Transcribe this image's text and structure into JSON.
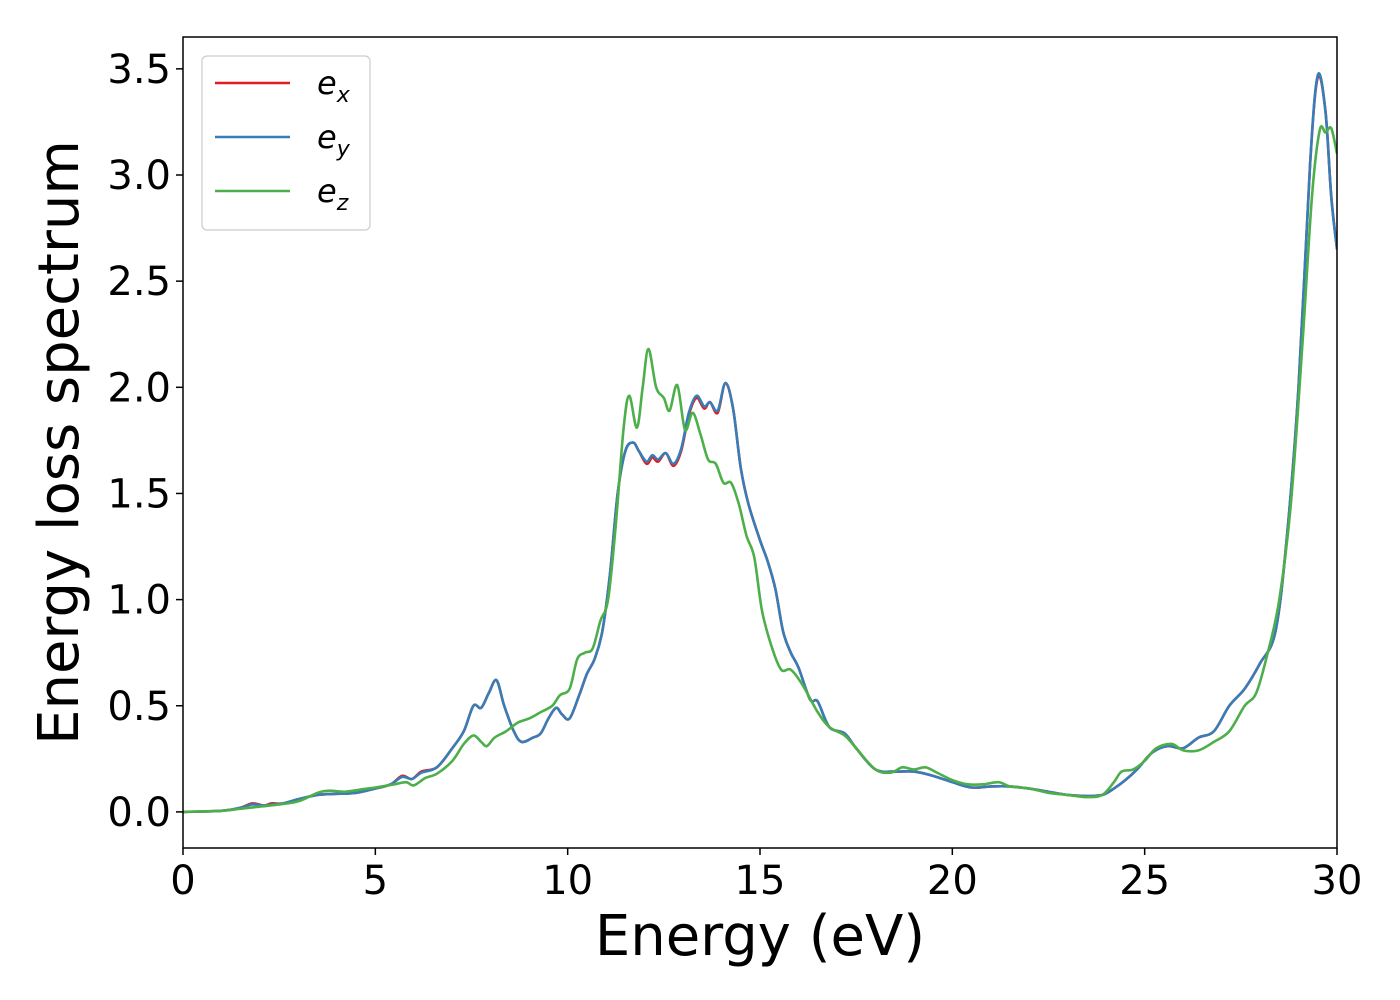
{
  "chart_data": {
    "type": "line",
    "xlabel": "Energy (eV)",
    "ylabel": "Energy loss spectrum",
    "xlim": [
      0,
      30
    ],
    "ylim": [
      -0.17,
      3.65
    ],
    "xticks": [
      0,
      5,
      10,
      15,
      20,
      25,
      30
    ],
    "yticks": [
      0.0,
      0.5,
      1.0,
      1.5,
      2.0,
      2.5,
      3.0,
      3.5
    ],
    "xtick_labels": [
      "0",
      "5",
      "10",
      "15",
      "20",
      "25",
      "30"
    ],
    "ytick_labels": [
      "0.0",
      "0.5",
      "1.0",
      "1.5",
      "2.0",
      "2.5",
      "3.0",
      "3.5"
    ],
    "grid": false,
    "legend_position": "top-left",
    "series": [
      {
        "name": "e_x",
        "legend_base": "e",
        "legend_sub": "x",
        "color": "#e41a1c",
        "points": [
          [
            0,
            0
          ],
          [
            1,
            0.005
          ],
          [
            1.5,
            0.02
          ],
          [
            1.8,
            0.04
          ],
          [
            2.1,
            0.03
          ],
          [
            2.3,
            0.04
          ],
          [
            2.6,
            0.04
          ],
          [
            3,
            0.06
          ],
          [
            3.5,
            0.08
          ],
          [
            4,
            0.085
          ],
          [
            4.5,
            0.09
          ],
          [
            5,
            0.11
          ],
          [
            5.4,
            0.13
          ],
          [
            5.7,
            0.17
          ],
          [
            5.95,
            0.155
          ],
          [
            6.2,
            0.19
          ],
          [
            6.6,
            0.21
          ],
          [
            7,
            0.3
          ],
          [
            7.3,
            0.38
          ],
          [
            7.55,
            0.5
          ],
          [
            7.75,
            0.49
          ],
          [
            7.95,
            0.56
          ],
          [
            8.15,
            0.62
          ],
          [
            8.35,
            0.5
          ],
          [
            8.6,
            0.38
          ],
          [
            8.8,
            0.33
          ],
          [
            9.1,
            0.35
          ],
          [
            9.3,
            0.37
          ],
          [
            9.5,
            0.44
          ],
          [
            9.7,
            0.49
          ],
          [
            9.85,
            0.46
          ],
          [
            10.05,
            0.44
          ],
          [
            10.3,
            0.55
          ],
          [
            10.5,
            0.65
          ],
          [
            10.7,
            0.72
          ],
          [
            10.9,
            0.85
          ],
          [
            11.1,
            1.12
          ],
          [
            11.3,
            1.5
          ],
          [
            11.5,
            1.7
          ],
          [
            11.7,
            1.74
          ],
          [
            11.85,
            1.7
          ],
          [
            12.05,
            1.64
          ],
          [
            12.2,
            1.67
          ],
          [
            12.35,
            1.65
          ],
          [
            12.55,
            1.69
          ],
          [
            12.75,
            1.63
          ],
          [
            12.95,
            1.7
          ],
          [
            13.15,
            1.87
          ],
          [
            13.35,
            1.95
          ],
          [
            13.55,
            1.9
          ],
          [
            13.7,
            1.93
          ],
          [
            13.9,
            1.88
          ],
          [
            14.1,
            2.02
          ],
          [
            14.3,
            1.9
          ],
          [
            14.5,
            1.62
          ],
          [
            14.7,
            1.45
          ],
          [
            15,
            1.28
          ],
          [
            15.2,
            1.18
          ],
          [
            15.4,
            1.05
          ],
          [
            15.6,
            0.85
          ],
          [
            15.8,
            0.75
          ],
          [
            16,
            0.68
          ],
          [
            16.3,
            0.53
          ],
          [
            16.5,
            0.52
          ],
          [
            16.8,
            0.4
          ],
          [
            17.2,
            0.37
          ],
          [
            17.5,
            0.3
          ],
          [
            18,
            0.2
          ],
          [
            18.5,
            0.19
          ],
          [
            19,
            0.19
          ],
          [
            19.5,
            0.17
          ],
          [
            20,
            0.14
          ],
          [
            20.5,
            0.115
          ],
          [
            21,
            0.12
          ],
          [
            21.5,
            0.12
          ],
          [
            22,
            0.11
          ],
          [
            22.5,
            0.095
          ],
          [
            23,
            0.08
          ],
          [
            23.5,
            0.075
          ],
          [
            23.9,
            0.08
          ],
          [
            24.2,
            0.11
          ],
          [
            24.5,
            0.15
          ],
          [
            24.8,
            0.2
          ],
          [
            25.2,
            0.28
          ],
          [
            25.6,
            0.31
          ],
          [
            26,
            0.3
          ],
          [
            26.4,
            0.35
          ],
          [
            26.8,
            0.38
          ],
          [
            27.2,
            0.5
          ],
          [
            27.6,
            0.58
          ],
          [
            28,
            0.7
          ],
          [
            28.4,
            0.85
          ],
          [
            28.7,
            1.3
          ],
          [
            29,
            2.0
          ],
          [
            29.3,
            3.05
          ],
          [
            29.5,
            3.46
          ],
          [
            29.7,
            3.3
          ],
          [
            29.85,
            2.9
          ],
          [
            30,
            2.65
          ]
        ]
      },
      {
        "name": "e_y",
        "legend_base": "e",
        "legend_sub": "y",
        "color": "#377eb8",
        "points": [
          [
            0,
            0
          ],
          [
            1,
            0.005
          ],
          [
            1.5,
            0.02
          ],
          [
            1.8,
            0.035
          ],
          [
            2.1,
            0.03
          ],
          [
            2.3,
            0.035
          ],
          [
            2.6,
            0.04
          ],
          [
            3,
            0.06
          ],
          [
            3.5,
            0.08
          ],
          [
            4,
            0.085
          ],
          [
            4.5,
            0.09
          ],
          [
            5,
            0.11
          ],
          [
            5.4,
            0.13
          ],
          [
            5.7,
            0.165
          ],
          [
            5.95,
            0.155
          ],
          [
            6.2,
            0.185
          ],
          [
            6.6,
            0.21
          ],
          [
            7,
            0.3
          ],
          [
            7.3,
            0.38
          ],
          [
            7.55,
            0.5
          ],
          [
            7.75,
            0.49
          ],
          [
            7.95,
            0.56
          ],
          [
            8.15,
            0.62
          ],
          [
            8.35,
            0.5
          ],
          [
            8.6,
            0.38
          ],
          [
            8.8,
            0.33
          ],
          [
            9.1,
            0.35
          ],
          [
            9.3,
            0.37
          ],
          [
            9.5,
            0.44
          ],
          [
            9.7,
            0.49
          ],
          [
            9.85,
            0.46
          ],
          [
            10.05,
            0.44
          ],
          [
            10.3,
            0.55
          ],
          [
            10.5,
            0.65
          ],
          [
            10.7,
            0.72
          ],
          [
            10.9,
            0.85
          ],
          [
            11.1,
            1.12
          ],
          [
            11.3,
            1.5
          ],
          [
            11.5,
            1.7
          ],
          [
            11.7,
            1.74
          ],
          [
            11.85,
            1.7
          ],
          [
            12.05,
            1.65
          ],
          [
            12.2,
            1.68
          ],
          [
            12.35,
            1.66
          ],
          [
            12.55,
            1.69
          ],
          [
            12.75,
            1.64
          ],
          [
            12.95,
            1.71
          ],
          [
            13.15,
            1.88
          ],
          [
            13.35,
            1.96
          ],
          [
            13.55,
            1.91
          ],
          [
            13.7,
            1.93
          ],
          [
            13.9,
            1.89
          ],
          [
            14.1,
            2.02
          ],
          [
            14.3,
            1.9
          ],
          [
            14.5,
            1.62
          ],
          [
            14.7,
            1.45
          ],
          [
            15,
            1.28
          ],
          [
            15.2,
            1.18
          ],
          [
            15.4,
            1.05
          ],
          [
            15.6,
            0.85
          ],
          [
            15.8,
            0.75
          ],
          [
            16,
            0.68
          ],
          [
            16.3,
            0.53
          ],
          [
            16.5,
            0.52
          ],
          [
            16.8,
            0.4
          ],
          [
            17.2,
            0.37
          ],
          [
            17.5,
            0.3
          ],
          [
            18,
            0.2
          ],
          [
            18.5,
            0.19
          ],
          [
            19,
            0.19
          ],
          [
            19.5,
            0.17
          ],
          [
            20,
            0.14
          ],
          [
            20.5,
            0.115
          ],
          [
            21,
            0.12
          ],
          [
            21.5,
            0.12
          ],
          [
            22,
            0.11
          ],
          [
            22.5,
            0.095
          ],
          [
            23,
            0.08
          ],
          [
            23.5,
            0.075
          ],
          [
            23.9,
            0.08
          ],
          [
            24.2,
            0.11
          ],
          [
            24.5,
            0.15
          ],
          [
            24.8,
            0.2
          ],
          [
            25.2,
            0.28
          ],
          [
            25.6,
            0.31
          ],
          [
            26,
            0.3
          ],
          [
            26.4,
            0.35
          ],
          [
            26.8,
            0.38
          ],
          [
            27.2,
            0.5
          ],
          [
            27.6,
            0.58
          ],
          [
            28,
            0.7
          ],
          [
            28.4,
            0.85
          ],
          [
            28.7,
            1.3
          ],
          [
            29,
            2.0
          ],
          [
            29.3,
            3.05
          ],
          [
            29.5,
            3.47
          ],
          [
            29.7,
            3.3
          ],
          [
            29.85,
            2.9
          ],
          [
            30,
            2.65
          ]
        ]
      },
      {
        "name": "e_z",
        "legend_base": "e",
        "legend_sub": "z",
        "color": "#4daf4a",
        "points": [
          [
            0,
            0
          ],
          [
            1,
            0.005
          ],
          [
            1.5,
            0.015
          ],
          [
            2,
            0.025
          ],
          [
            2.5,
            0.035
          ],
          [
            3,
            0.05
          ],
          [
            3.5,
            0.09
          ],
          [
            3.8,
            0.1
          ],
          [
            4.2,
            0.095
          ],
          [
            4.6,
            0.105
          ],
          [
            5,
            0.115
          ],
          [
            5.5,
            0.13
          ],
          [
            5.8,
            0.14
          ],
          [
            6,
            0.125
          ],
          [
            6.3,
            0.16
          ],
          [
            6.6,
            0.18
          ],
          [
            7,
            0.24
          ],
          [
            7.3,
            0.32
          ],
          [
            7.55,
            0.36
          ],
          [
            7.75,
            0.33
          ],
          [
            7.9,
            0.31
          ],
          [
            8.1,
            0.35
          ],
          [
            8.4,
            0.38
          ],
          [
            8.7,
            0.42
          ],
          [
            9,
            0.44
          ],
          [
            9.3,
            0.47
          ],
          [
            9.6,
            0.5
          ],
          [
            9.8,
            0.55
          ],
          [
            10.05,
            0.58
          ],
          [
            10.25,
            0.72
          ],
          [
            10.45,
            0.75
          ],
          [
            10.65,
            0.77
          ],
          [
            10.85,
            0.9
          ],
          [
            11.05,
            1.0
          ],
          [
            11.25,
            1.35
          ],
          [
            11.45,
            1.8
          ],
          [
            11.6,
            1.96
          ],
          [
            11.8,
            1.81
          ],
          [
            11.95,
            2.0
          ],
          [
            12.1,
            2.18
          ],
          [
            12.3,
            2.0
          ],
          [
            12.5,
            1.95
          ],
          [
            12.65,
            1.89
          ],
          [
            12.85,
            2.01
          ],
          [
            13.05,
            1.8
          ],
          [
            13.25,
            1.88
          ],
          [
            13.45,
            1.78
          ],
          [
            13.65,
            1.66
          ],
          [
            13.85,
            1.64
          ],
          [
            14.05,
            1.55
          ],
          [
            14.25,
            1.55
          ],
          [
            14.45,
            1.45
          ],
          [
            14.65,
            1.3
          ],
          [
            14.85,
            1.2
          ],
          [
            15.05,
            0.95
          ],
          [
            15.3,
            0.78
          ],
          [
            15.55,
            0.67
          ],
          [
            15.8,
            0.67
          ],
          [
            16.1,
            0.6
          ],
          [
            16.5,
            0.47
          ],
          [
            16.8,
            0.4
          ],
          [
            17.2,
            0.36
          ],
          [
            17.5,
            0.3
          ],
          [
            18,
            0.2
          ],
          [
            18.4,
            0.185
          ],
          [
            18.7,
            0.21
          ],
          [
            19,
            0.2
          ],
          [
            19.3,
            0.21
          ],
          [
            19.6,
            0.185
          ],
          [
            20,
            0.15
          ],
          [
            20.4,
            0.13
          ],
          [
            20.8,
            0.13
          ],
          [
            21.2,
            0.14
          ],
          [
            21.5,
            0.12
          ],
          [
            22,
            0.11
          ],
          [
            22.5,
            0.09
          ],
          [
            23,
            0.08
          ],
          [
            23.5,
            0.07
          ],
          [
            23.9,
            0.08
          ],
          [
            24.2,
            0.14
          ],
          [
            24.4,
            0.19
          ],
          [
            24.7,
            0.2
          ],
          [
            25,
            0.24
          ],
          [
            25.3,
            0.3
          ],
          [
            25.7,
            0.32
          ],
          [
            26,
            0.29
          ],
          [
            26.4,
            0.29
          ],
          [
            26.8,
            0.33
          ],
          [
            27.2,
            0.38
          ],
          [
            27.6,
            0.5
          ],
          [
            27.9,
            0.56
          ],
          [
            28.2,
            0.75
          ],
          [
            28.5,
            1.0
          ],
          [
            28.8,
            1.45
          ],
          [
            29.1,
            2.2
          ],
          [
            29.35,
            2.9
          ],
          [
            29.55,
            3.21
          ],
          [
            29.7,
            3.2
          ],
          [
            29.85,
            3.22
          ],
          [
            30,
            3.1
          ]
        ]
      }
    ]
  }
}
